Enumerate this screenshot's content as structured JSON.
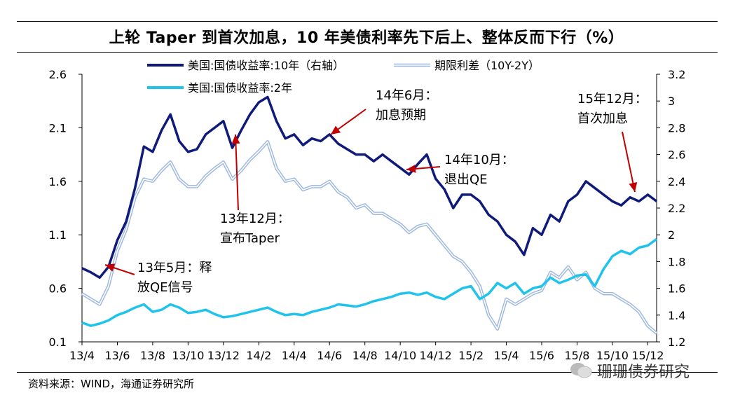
{
  "title": "上轮 Taper 到首次加息，10 年美债利率先下后上、整体反而下行（%）",
  "source": "资料来源：WIND，海通证券研究所",
  "watermark": "珊珊债券研究",
  "colors": {
    "us10y": "#0f1a7a",
    "term": "#9db8e0",
    "us2y": "#1fc3ec",
    "arrow": "#c00000"
  },
  "chart_data": {
    "type": "line",
    "x_ticks": [
      "13/4",
      "13/6",
      "13/8",
      "13/10",
      "13/12",
      "14/2",
      "14/4",
      "14/6",
      "14/8",
      "14/10",
      "14/12",
      "15/2",
      "15/4",
      "15/6",
      "15/8",
      "15/10",
      "15/12"
    ],
    "x_range": [
      0,
      32.5
    ],
    "y_left": {
      "min": 0.1,
      "max": 2.6,
      "ticks": [
        "0.1",
        "0.6",
        "1.1",
        "1.6",
        "2.1",
        "2.6"
      ]
    },
    "y_right": {
      "min": 1.2,
      "max": 3.2,
      "ticks": [
        "1.2",
        "1.4",
        "1.6",
        "1.8",
        "2",
        "2.2",
        "2.4",
        "2.6",
        "2.8",
        "3",
        "3.2"
      ]
    },
    "legend": [
      "美国:国债收益率:10年（右轴）",
      "期限利差（10Y-2Y）",
      "美国:国债收益率:2年"
    ],
    "series": [
      {
        "name": "美国:国债收益率:10年（右轴）",
        "axis": "right",
        "x": [
          0,
          0.5,
          1,
          1.5,
          2,
          2.5,
          3,
          3.5,
          4,
          4.5,
          5,
          5.5,
          6,
          6.5,
          7,
          7.5,
          8,
          8.5,
          9,
          9.5,
          10,
          10.5,
          11,
          11.5,
          12,
          12.5,
          13,
          13.5,
          14,
          14.5,
          15,
          15.5,
          16,
          16.5,
          17,
          17.5,
          18,
          18.5,
          19,
          19.5,
          20,
          20.5,
          21,
          21.5,
          22,
          22.5,
          23,
          23.5,
          24,
          24.5,
          25,
          25.5,
          26,
          26.5,
          27,
          27.5,
          28,
          28.5,
          29,
          29.5,
          30,
          30.5,
          31,
          31.5,
          32,
          32.5
        ],
        "values": [
          1.75,
          1.72,
          1.68,
          1.76,
          1.96,
          2.1,
          2.35,
          2.66,
          2.62,
          2.78,
          2.9,
          2.7,
          2.62,
          2.64,
          2.75,
          2.8,
          2.85,
          2.65,
          2.78,
          2.9,
          2.99,
          3.03,
          2.85,
          2.72,
          2.75,
          2.67,
          2.72,
          2.7,
          2.75,
          2.68,
          2.64,
          2.6,
          2.6,
          2.55,
          2.6,
          2.55,
          2.5,
          2.45,
          2.53,
          2.6,
          2.42,
          2.34,
          2.2,
          2.3,
          2.3,
          2.25,
          2.15,
          2.1,
          2.0,
          1.95,
          1.85,
          2.05,
          2.0,
          2.15,
          2.1,
          2.25,
          2.3,
          2.4,
          2.35,
          2.3,
          2.25,
          2.22,
          2.28,
          2.25,
          2.3,
          2.25
        ]
      },
      {
        "name": "期限利差（10Y-2Y）",
        "axis": "left",
        "x": [
          0,
          0.5,
          1,
          1.5,
          2,
          2.5,
          3,
          3.5,
          4,
          4.5,
          5,
          5.5,
          6,
          6.5,
          7,
          7.5,
          8,
          8.5,
          9,
          9.5,
          10,
          10.5,
          11,
          11.5,
          12,
          12.5,
          13,
          13.5,
          14,
          14.5,
          15,
          15.5,
          16,
          16.5,
          17,
          17.5,
          18,
          18.5,
          19,
          19.5,
          20,
          20.5,
          21,
          21.5,
          22,
          22.5,
          23,
          23.5,
          24,
          24.5,
          25,
          25.5,
          26,
          26.5,
          27,
          27.5,
          28,
          28.5,
          29,
          29.5,
          30,
          30.5,
          31,
          31.5,
          32,
          32.5
        ],
        "values": [
          0.55,
          0.5,
          0.45,
          0.62,
          0.95,
          1.15,
          1.45,
          1.62,
          1.6,
          1.7,
          1.78,
          1.62,
          1.55,
          1.55,
          1.65,
          1.72,
          1.78,
          1.62,
          1.7,
          1.8,
          1.88,
          1.97,
          1.72,
          1.6,
          1.62,
          1.52,
          1.55,
          1.55,
          1.6,
          1.5,
          1.45,
          1.35,
          1.38,
          1.3,
          1.3,
          1.25,
          1.2,
          1.12,
          1.18,
          1.2,
          1.1,
          1.0,
          0.9,
          0.85,
          0.75,
          0.62,
          0.35,
          0.22,
          0.5,
          0.45,
          0.5,
          0.55,
          0.58,
          0.75,
          0.7,
          0.8,
          0.68,
          0.75,
          0.6,
          0.55,
          0.55,
          0.5,
          0.45,
          0.38,
          0.25,
          0.18
        ]
      },
      {
        "name": "美国:国债收益率:2年",
        "axis": "left",
        "x": [
          0,
          0.5,
          1,
          1.5,
          2,
          2.5,
          3,
          3.5,
          4,
          4.5,
          5,
          5.5,
          6,
          6.5,
          7,
          7.5,
          8,
          8.5,
          9,
          9.5,
          10,
          10.5,
          11,
          11.5,
          12,
          12.5,
          13,
          13.5,
          14,
          14.5,
          15,
          15.5,
          16,
          16.5,
          17,
          17.5,
          18,
          18.5,
          19,
          19.5,
          20,
          20.5,
          21,
          21.5,
          22,
          22.5,
          23,
          23.5,
          24,
          24.5,
          25,
          25.5,
          26,
          26.5,
          27,
          27.5,
          28,
          28.5,
          29,
          29.5,
          30,
          30.5,
          31,
          31.5,
          32,
          32.5
        ],
        "values": [
          0.28,
          0.25,
          0.27,
          0.3,
          0.35,
          0.38,
          0.42,
          0.45,
          0.38,
          0.4,
          0.45,
          0.42,
          0.37,
          0.38,
          0.4,
          0.36,
          0.33,
          0.34,
          0.36,
          0.38,
          0.4,
          0.42,
          0.38,
          0.35,
          0.36,
          0.35,
          0.38,
          0.4,
          0.42,
          0.45,
          0.44,
          0.43,
          0.45,
          0.48,
          0.5,
          0.52,
          0.55,
          0.56,
          0.54,
          0.56,
          0.52,
          0.5,
          0.55,
          0.6,
          0.62,
          0.5,
          0.55,
          0.65,
          0.6,
          0.65,
          0.55,
          0.6,
          0.62,
          0.7,
          0.65,
          0.68,
          0.72,
          0.73,
          0.62,
          0.78,
          0.9,
          0.95,
          0.92,
          0.98,
          1.0,
          1.06
        ]
      }
    ],
    "annotations": [
      {
        "text": [
          "13年5月：释",
          "放QE信号"
        ],
        "at_x": 1.2
      },
      {
        "text": [
          "13年12月：",
          "宣布Taper"
        ],
        "at_x": 10.3
      },
      {
        "text": [
          "14年6月：",
          "加息预期"
        ],
        "at_x": 17.5
      },
      {
        "text": [
          "14年10月：",
          "退出QE"
        ],
        "at_x": 22.5
      },
      {
        "text": [
          "15年12月：",
          "首次加息"
        ],
        "at_x": 32.2
      }
    ]
  }
}
